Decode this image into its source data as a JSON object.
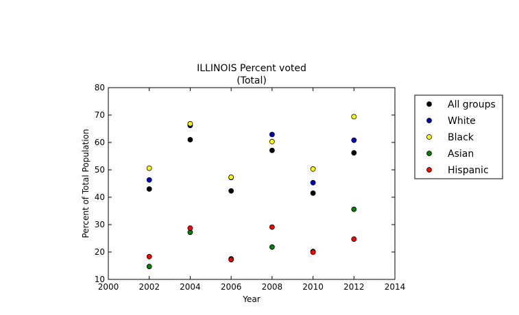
{
  "chart_data": {
    "type": "scatter",
    "title": "ILLINOIS Percent voted",
    "subtitle": "(Total)",
    "xlabel": "Year",
    "ylabel": "Percent of Total Population",
    "xlim": [
      2000,
      2014
    ],
    "ylim": [
      10,
      80
    ],
    "xticks": [
      2000,
      2002,
      2004,
      2006,
      2008,
      2010,
      2012,
      2014
    ],
    "yticks": [
      10,
      20,
      30,
      40,
      50,
      60,
      70,
      80
    ],
    "grid": false,
    "legend_position": "right-outside",
    "x": [
      2002,
      2004,
      2006,
      2008,
      2010,
      2012
    ],
    "series": [
      {
        "name": "All groups",
        "color": "#000000",
        "values": [
          43.0,
          61.0,
          42.3,
          57.1,
          41.5,
          56.2
        ]
      },
      {
        "name": "White",
        "color": "#0000bf",
        "values": [
          46.3,
          66.2,
          47.2,
          62.9,
          45.3,
          60.8
        ]
      },
      {
        "name": "Black",
        "color": "#ffff00",
        "values": [
          50.6,
          66.8,
          47.3,
          60.3,
          50.3,
          69.4
        ]
      },
      {
        "name": "Asian",
        "color": "#008000",
        "values": [
          14.7,
          27.2,
          17.5,
          21.8,
          20.2,
          35.6
        ]
      },
      {
        "name": "Hispanic",
        "color": "#ff0000",
        "values": [
          18.3,
          28.7,
          17.2,
          29.1,
          19.9,
          24.7
        ]
      }
    ]
  }
}
